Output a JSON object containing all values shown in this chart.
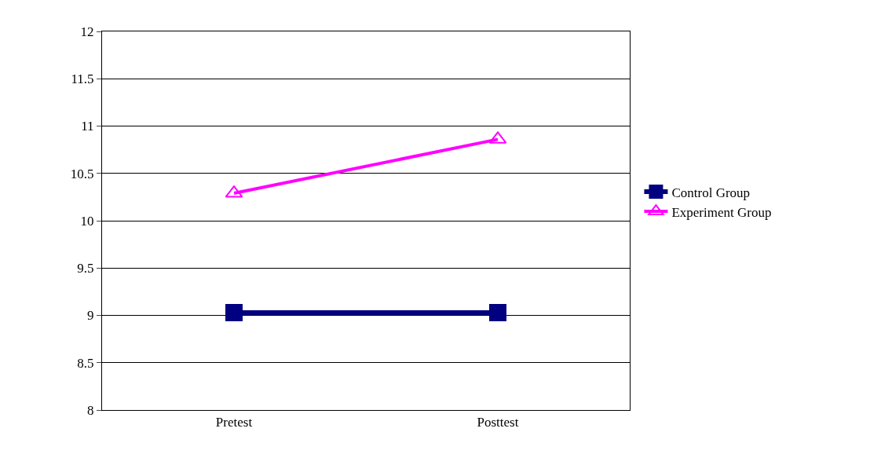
{
  "chart_data": {
    "type": "line",
    "categories": [
      "Pretest",
      "Posttest"
    ],
    "series": [
      {
        "name": "Control Group",
        "color": "#000080",
        "values": [
          9.03,
          9.03
        ],
        "marker": "square"
      },
      {
        "name": "Experiment Group",
        "color": "#ff00ff",
        "values": [
          10.29,
          10.86
        ],
        "marker": "triangle"
      }
    ],
    "ylim": [
      8,
      12
    ],
    "yticks": [
      8,
      8.5,
      9,
      9.5,
      10,
      10.5,
      11,
      11.5,
      12
    ],
    "grid": "y",
    "legend": "right"
  }
}
